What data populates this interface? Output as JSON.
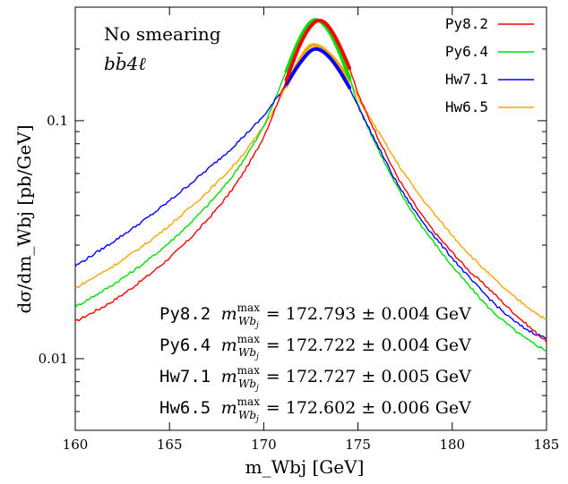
{
  "chart_data": {
    "type": "line",
    "xlabel": "m_Wbj [GeV]",
    "ylabel": "dσ/dm_Wbj [pb/GeV]",
    "xlim": [
      160,
      185
    ],
    "ylim": [
      0.005,
      0.3
    ],
    "yscale": "log",
    "x_ticks": [
      160,
      165,
      170,
      175,
      180,
      185
    ],
    "y_ticks": [
      0.01,
      0.1
    ],
    "x_tick_labels": [
      "160",
      "165",
      "170",
      "175",
      "180",
      "185"
    ],
    "y_tick_labels": [
      "0.01",
      "0.1"
    ],
    "grid": false,
    "legend_position": "top-right",
    "annotations": {
      "line1": "No smearing",
      "line2": "bb̄4ℓ"
    },
    "series": [
      {
        "name": "Py8.2",
        "color": "#ff0000",
        "x": [
          160,
          162,
          164,
          166,
          168,
          169,
          170,
          171,
          172,
          172.8,
          173.5,
          174.5,
          175,
          176,
          177,
          178,
          179,
          180,
          181,
          182,
          183,
          184,
          185
        ],
        "y": [
          0.0143,
          0.0175,
          0.0228,
          0.0315,
          0.0475,
          0.062,
          0.086,
          0.135,
          0.215,
          0.262,
          0.245,
          0.17,
          0.13,
          0.087,
          0.06,
          0.0445,
          0.0345,
          0.028,
          0.023,
          0.0195,
          0.0163,
          0.0138,
          0.0118
        ],
        "fit_max": "172.793 ± 0.004 GeV"
      },
      {
        "name": "Py6.4",
        "color": "#00dd00",
        "x": [
          160,
          162,
          164,
          166,
          168,
          169,
          170,
          171,
          172,
          172.7,
          173.5,
          174.5,
          175,
          176,
          177,
          178,
          179,
          180,
          181,
          182,
          183,
          184,
          185
        ],
        "y": [
          0.0165,
          0.0205,
          0.0265,
          0.0365,
          0.054,
          0.07,
          0.095,
          0.148,
          0.228,
          0.265,
          0.235,
          0.155,
          0.118,
          0.078,
          0.054,
          0.04,
          0.031,
          0.0245,
          0.0198,
          0.0162,
          0.0138,
          0.012,
          0.0108
        ],
        "fit_max": "172.722 ± 0.004 GeV"
      },
      {
        "name": "Hw7.1",
        "color": "#0000ff",
        "x": [
          160,
          162,
          164,
          166,
          168,
          169,
          170,
          171,
          172,
          172.7,
          173.5,
          174.5,
          175,
          176,
          177,
          178,
          179,
          180,
          181,
          182,
          183,
          184,
          185
        ],
        "y": [
          0.0245,
          0.031,
          0.04,
          0.0535,
          0.073,
          0.087,
          0.105,
          0.135,
          0.178,
          0.2,
          0.184,
          0.14,
          0.115,
          0.08,
          0.056,
          0.042,
          0.033,
          0.0265,
          0.0215,
          0.0178,
          0.015,
          0.0132,
          0.0122
        ],
        "fit_max": "172.727 ± 0.005 GeV"
      },
      {
        "name": "Hw6.5",
        "color": "#ffa500",
        "x": [
          160,
          162,
          164,
          166,
          168,
          169,
          170,
          171,
          172,
          172.6,
          173.5,
          174.5,
          175,
          176,
          177,
          178,
          179,
          180,
          181,
          182,
          183,
          184,
          185
        ],
        "y": [
          0.0198,
          0.0245,
          0.0315,
          0.0425,
          0.06,
          0.074,
          0.095,
          0.13,
          0.185,
          0.208,
          0.19,
          0.15,
          0.125,
          0.092,
          0.068,
          0.052,
          0.041,
          0.033,
          0.027,
          0.0225,
          0.019,
          0.0165,
          0.0145
        ],
        "fit_max": "172.602 ± 0.006 GeV"
      }
    ]
  }
}
